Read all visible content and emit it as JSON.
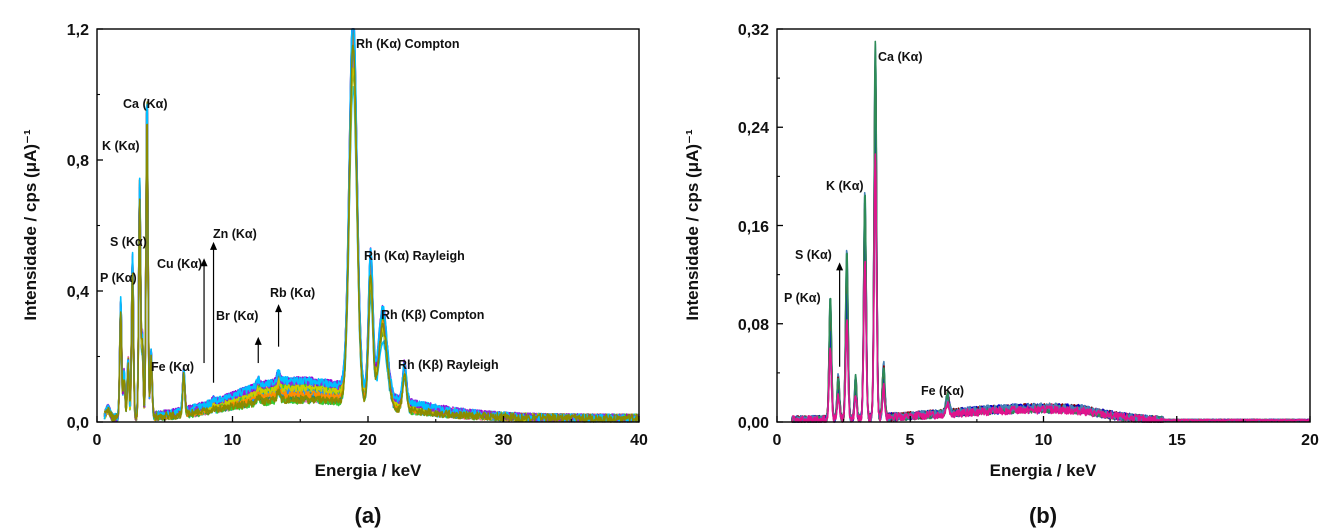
{
  "chart_data": [
    {
      "type": "line",
      "panel_label": "(a)",
      "xlabel": "Energia / keV",
      "ylabel": "Intensidade / cps (μA)⁻¹",
      "xlim": [
        0,
        40
      ],
      "ylim": [
        0,
        1.2
      ],
      "x_ticks": [
        0,
        10,
        20,
        30,
        40
      ],
      "x_tick_labels": [
        "0",
        "10",
        "20",
        "30",
        "40"
      ],
      "y_ticks": [
        0,
        0.4,
        0.8,
        1.2
      ],
      "y_tick_labels": [
        "0,0",
        "0,4",
        "0,8",
        "1,2"
      ],
      "grid": false,
      "series_colors": [
        "#00bfff",
        "#8b8b00",
        "#2e8b57",
        "#ff69b4",
        "#1e90ff",
        "#ff8c00",
        "#32cd32",
        "#cccc00",
        "#9400d3",
        "#8a2be2"
      ],
      "peaks": [
        {
          "x": 0.8,
          "y": 0.03,
          "w": 0.15
        },
        {
          "x": 1.75,
          "y": 0.36,
          "w": 0.07
        },
        {
          "x": 2.0,
          "y": 0.14,
          "w": 0.07
        },
        {
          "x": 2.3,
          "y": 0.18,
          "w": 0.07
        },
        {
          "x": 2.62,
          "y": 0.5,
          "w": 0.07
        },
        {
          "x": 3.15,
          "y": 0.72,
          "w": 0.07
        },
        {
          "x": 3.35,
          "y": 0.25,
          "w": 0.06
        },
        {
          "x": 3.69,
          "y": 0.99,
          "w": 0.07
        },
        {
          "x": 4.0,
          "y": 0.2,
          "w": 0.07
        },
        {
          "x": 6.4,
          "y": 0.13,
          "w": 0.08
        },
        {
          "x": 8.6,
          "y": 0.01,
          "w": 0.1
        },
        {
          "x": 11.9,
          "y": 0.02,
          "w": 0.12
        },
        {
          "x": 13.4,
          "y": 0.03,
          "w": 0.12
        },
        {
          "x": 18.9,
          "y": 1.17,
          "w": 0.28
        },
        {
          "x": 20.2,
          "y": 0.44,
          "w": 0.16
        },
        {
          "x": 21.1,
          "y": 0.27,
          "w": 0.32
        },
        {
          "x": 22.7,
          "y": 0.12,
          "w": 0.14
        }
      ],
      "continuum": {
        "center": 14.5,
        "sigma_low": 4.5,
        "sigma_high": 6.5,
        "amplitude": 0.12,
        "end": 40
      },
      "annotations": [
        {
          "text": "Ca (Kα)",
          "x": 4.3,
          "y": 0.97
        },
        {
          "text": "K (Kα)",
          "x": 0.45,
          "y": 0.84
        },
        {
          "text": "S (Kα)",
          "x": 1.05,
          "y": 0.55
        },
        {
          "text": "P (Kα)",
          "x": 0.9,
          "y": 0.44
        },
        {
          "text": "Cu (Kα)",
          "x": 5.7,
          "y": 0.48
        },
        {
          "text": "Zn (Kα)",
          "x": 8.7,
          "y": 0.57
        },
        {
          "text": "Fe (Kα)",
          "x": 4.2,
          "y": 0.17
        },
        {
          "text": "Br (Kα)",
          "x": 9.0,
          "y": 0.32
        },
        {
          "text": "Rb (Kα)",
          "x": 13.4,
          "y": 0.39
        },
        {
          "text": "Rh (Kα) Compton",
          "x": 19.3,
          "y": 1.14
        },
        {
          "text": "Rh (Kα) Rayleigh",
          "x": 20.2,
          "y": 0.5
        },
        {
          "text": "Rh (Kβ) Compton",
          "x": 21.3,
          "y": 0.32
        },
        {
          "text": "Rh (Kβ) Rayleigh",
          "x": 22.4,
          "y": 0.17
        }
      ],
      "arrows": [
        {
          "x": 7.9,
          "y_from": 0.18,
          "y_to": 0.5
        },
        {
          "x": 8.6,
          "y_from": 0.12,
          "y_to": 0.55
        },
        {
          "x": 11.9,
          "y_from": 0.18,
          "y_to": 0.26
        },
        {
          "x": 13.4,
          "y_from": 0.23,
          "y_to": 0.36
        }
      ]
    },
    {
      "type": "line",
      "panel_label": "(b)",
      "xlabel": "Energia / keV",
      "ylabel": "Intensidade / cps (μA)⁻¹",
      "xlim": [
        0,
        20
      ],
      "ylim": [
        0,
        0.32
      ],
      "x_ticks": [
        0,
        5,
        10,
        15,
        20
      ],
      "x_tick_labels": [
        "0",
        "5",
        "10",
        "15",
        "20"
      ],
      "y_ticks": [
        0,
        0.08,
        0.16,
        0.24,
        0.32
      ],
      "y_tick_labels": [
        "0,00",
        "0,08",
        "0,16",
        "0,24",
        "0,32"
      ],
      "grid": false,
      "series_colors": [
        "#8b0000",
        "#0000cd",
        "#2e8b57",
        "#4682b4",
        "#e0148c"
      ],
      "peaks": [
        {
          "x": 2.0,
          "y": 0.101,
          "w": 0.045
        },
        {
          "x": 2.3,
          "y": 0.035,
          "w": 0.045
        },
        {
          "x": 2.62,
          "y": 0.14,
          "w": 0.045
        },
        {
          "x": 2.95,
          "y": 0.035,
          "w": 0.04
        },
        {
          "x": 3.3,
          "y": 0.186,
          "w": 0.045
        },
        {
          "x": 3.69,
          "y": 0.307,
          "w": 0.045
        },
        {
          "x": 4.0,
          "y": 0.044,
          "w": 0.045
        },
        {
          "x": 6.4,
          "y": 0.015,
          "w": 0.06
        }
      ],
      "continuum": {
        "center": 10.0,
        "sigma_low": 3.5,
        "sigma_high": 2.8,
        "amplitude": 0.011,
        "end": 14.5
      },
      "annotations": [
        {
          "text": "Ca (Kα)",
          "x": 3.8,
          "y": 0.295
        },
        {
          "text": "K (Kα)",
          "x": 1.9,
          "y": 0.19
        },
        {
          "text": "S (Kα)",
          "x": 0.75,
          "y": 0.135
        },
        {
          "text": "P (Kα)",
          "x": 0.25,
          "y": 0.1
        },
        {
          "text": "Fe (Kα)",
          "x": 5.4,
          "y": 0.024
        }
      ],
      "arrows": [
        {
          "x": 2.35,
          "y_from": 0.045,
          "y_to": 0.13
        }
      ]
    }
  ]
}
